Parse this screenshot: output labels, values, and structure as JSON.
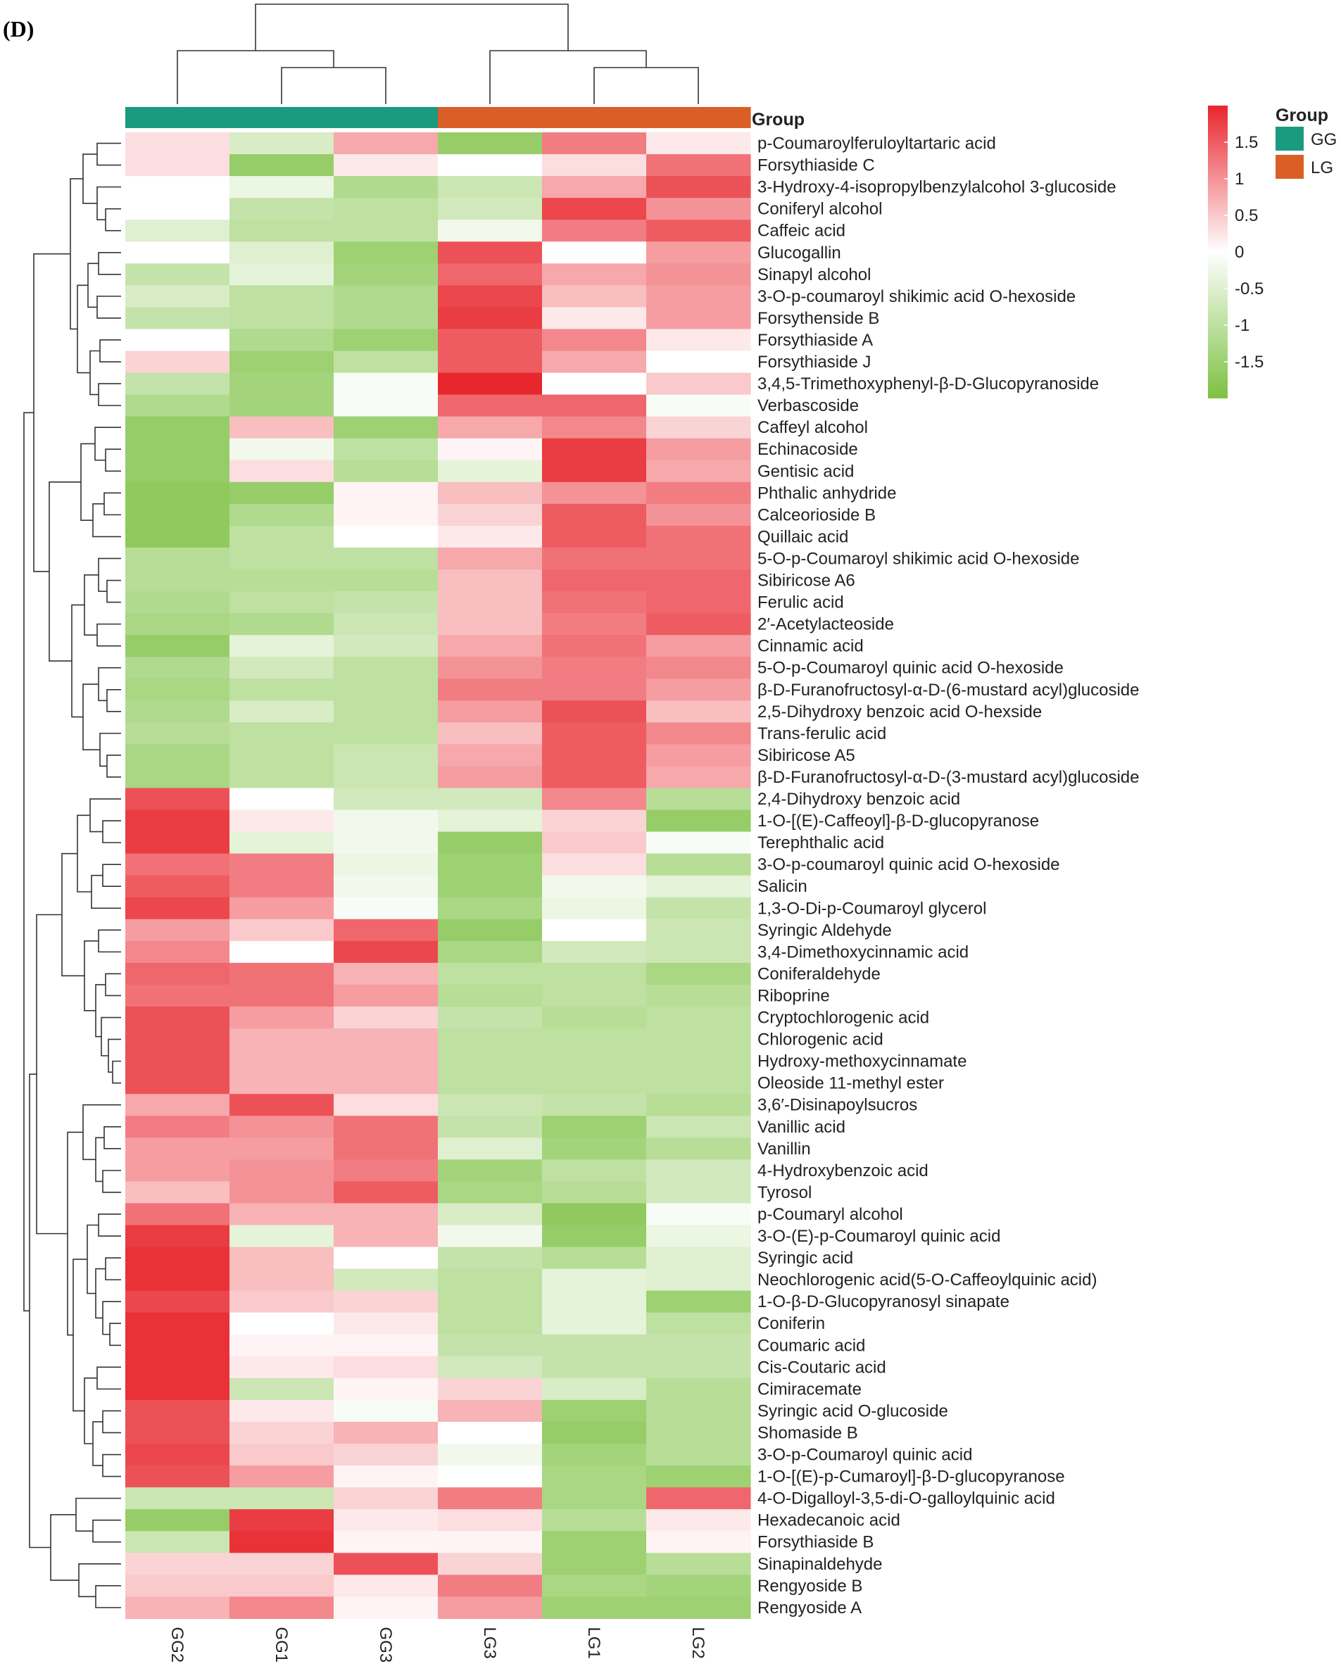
{
  "chart_data": {
    "type": "heatmap",
    "panel_label": "(D)",
    "columns": [
      "GG2",
      "GG1",
      "GG3",
      "LG3",
      "LG1",
      "LG2"
    ],
    "column_groups": [
      "GG",
      "GG",
      "GG",
      "LG",
      "LG",
      "LG"
    ],
    "group_annotation_title": "Group",
    "legend_title": "Group",
    "groups": [
      {
        "name": "GG",
        "color": "#1a9a7e"
      },
      {
        "name": "LG",
        "color": "#d95f27"
      }
    ],
    "color_scale": {
      "min": -2,
      "max": 2,
      "low_color": "#7cc142",
      "mid_color": "#ffffff",
      "high_color": "#e8262e",
      "ticks": [
        1.5,
        1,
        0.5,
        0,
        -0.5,
        -1,
        -1.5
      ],
      "tick_labels": [
        "1.5",
        "1",
        "0.5",
        "0",
        "-0.5",
        "-1",
        "-1.5"
      ]
    },
    "rows": [
      {
        "name": "p-Coumaroylferuloyltartaric acid",
        "values": [
          0.3,
          -0.6,
          0.8,
          -1.6,
          1.2,
          0.2
        ]
      },
      {
        "name": "Forsythiaside C",
        "values": [
          0.3,
          -1.6,
          0.2,
          0.0,
          0.3,
          1.3
        ]
      },
      {
        "name": "3-Hydroxy-4-isopropylbenzylalcohol 3-glucoside",
        "values": [
          0.0,
          -0.3,
          -1.2,
          -0.8,
          0.8,
          1.6
        ]
      },
      {
        "name": "Coniferyl alcohol",
        "values": [
          0.0,
          -0.9,
          -1.0,
          -0.7,
          1.7,
          1.0
        ]
      },
      {
        "name": "Caffeic acid",
        "values": [
          -0.5,
          -1.0,
          -1.0,
          -0.2,
          1.2,
          1.5
        ]
      },
      {
        "name": "Glucogallin",
        "values": [
          0.0,
          -0.5,
          -1.5,
          1.6,
          0.0,
          0.9
        ]
      },
      {
        "name": "Sinapyl alcohol",
        "values": [
          -0.9,
          -0.4,
          -1.4,
          1.4,
          0.8,
          1.0
        ]
      },
      {
        "name": "3-O-p-coumaroyl shikimic acid O-hexoside",
        "values": [
          -0.6,
          -1.0,
          -1.2,
          1.7,
          0.6,
          0.9
        ]
      },
      {
        "name": "Forsythenside B",
        "values": [
          -0.9,
          -1.0,
          -1.2,
          1.8,
          0.2,
          0.9
        ]
      },
      {
        "name": "Forsythiaside A",
        "values": [
          0.0,
          -1.2,
          -1.5,
          1.5,
          1.1,
          0.2
        ]
      },
      {
        "name": "Forsythiaside J",
        "values": [
          0.4,
          -1.5,
          -1.0,
          1.5,
          0.8,
          0.0
        ]
      },
      {
        "name": "3,4,5-Trimethoxyphenyl-β-D-Glucopyranoside",
        "values": [
          -0.9,
          -1.4,
          -0.1,
          2.0,
          0.0,
          0.5
        ]
      },
      {
        "name": "Verbascoside",
        "values": [
          -1.2,
          -1.4,
          -0.1,
          1.4,
          1.4,
          -0.1
        ]
      },
      {
        "name": "Caffeyl alcohol",
        "values": [
          -1.6,
          0.6,
          -1.5,
          0.8,
          1.1,
          0.4
        ]
      },
      {
        "name": "Echinacoside",
        "values": [
          -1.6,
          -0.2,
          -1.0,
          0.1,
          1.8,
          0.9
        ]
      },
      {
        "name": "Gentisic acid",
        "values": [
          -1.6,
          0.3,
          -1.1,
          -0.4,
          1.8,
          0.8
        ]
      },
      {
        "name": "Phthalic anhydride",
        "values": [
          -1.7,
          -1.6,
          0.1,
          0.6,
          1.0,
          1.2
        ]
      },
      {
        "name": "Calceorioside B",
        "values": [
          -1.7,
          -1.2,
          0.1,
          0.4,
          1.5,
          1.0
        ]
      },
      {
        "name": "Quillaic acid",
        "values": [
          -1.7,
          -1.0,
          0.0,
          0.2,
          1.5,
          1.3
        ]
      },
      {
        "name": "5-O-p-Coumaroyl shikimic acid O-hexoside",
        "values": [
          -1.1,
          -1.0,
          -1.0,
          0.8,
          1.3,
          1.3
        ]
      },
      {
        "name": "Sibiricose A6",
        "values": [
          -1.1,
          -1.1,
          -1.1,
          0.6,
          1.4,
          1.4
        ]
      },
      {
        "name": "Ferulic acid",
        "values": [
          -1.2,
          -1.0,
          -0.9,
          0.6,
          1.3,
          1.4
        ]
      },
      {
        "name": "2′-Acetylacteoside",
        "values": [
          -1.3,
          -1.2,
          -0.8,
          0.6,
          1.2,
          1.5
        ]
      },
      {
        "name": "Cinnamic acid",
        "values": [
          -1.6,
          -0.4,
          -0.7,
          0.8,
          1.3,
          0.9
        ]
      },
      {
        "name": "5-O-p-Coumaroyl quinic acid O-hexoside",
        "values": [
          -1.2,
          -0.7,
          -1.0,
          1.0,
          1.2,
          1.1
        ]
      },
      {
        "name": "β-D-Furanofructosyl-α-D-(6-mustard acyl)glucoside",
        "values": [
          -1.3,
          -1.0,
          -1.0,
          1.2,
          1.2,
          0.9
        ]
      },
      {
        "name": "2,5-Dihydroxy benzoic acid O-hexside",
        "values": [
          -1.2,
          -0.6,
          -1.0,
          0.9,
          1.6,
          0.6
        ]
      },
      {
        "name": "Trans-ferulic acid",
        "values": [
          -1.1,
          -1.0,
          -1.0,
          0.6,
          1.5,
          1.1
        ]
      },
      {
        "name": "Sibiricose A5",
        "values": [
          -1.3,
          -1.0,
          -0.8,
          0.8,
          1.5,
          0.9
        ]
      },
      {
        "name": "β-D-Furanofructosyl-α-D-(3-mustard acyl)glucoside",
        "values": [
          -1.3,
          -1.0,
          -0.8,
          0.9,
          1.5,
          0.8
        ]
      },
      {
        "name": "2,4-Dihydroxy benzoic acid",
        "values": [
          1.6,
          0.0,
          -0.7,
          -0.7,
          1.1,
          -1.1
        ]
      },
      {
        "name": "1-O-[(E)-Caffeoyl]-β-D-glucopyranose",
        "values": [
          1.8,
          0.2,
          -0.2,
          -0.4,
          0.4,
          -1.6
        ]
      },
      {
        "name": "Terephthalic acid",
        "values": [
          1.8,
          -0.4,
          -0.2,
          -1.6,
          0.5,
          -0.1
        ]
      },
      {
        "name": "3-O-p-coumaroyl quinic acid O-hexoside",
        "values": [
          1.3,
          1.2,
          -0.3,
          -1.5,
          0.3,
          -1.1
        ]
      },
      {
        "name": "Salicin",
        "values": [
          1.5,
          1.2,
          -0.2,
          -1.5,
          -0.2,
          -0.4
        ]
      },
      {
        "name": "1,3-O-Di-p-Coumaroyl glycerol",
        "values": [
          1.7,
          0.9,
          -0.1,
          -1.3,
          -0.3,
          -0.9
        ]
      },
      {
        "name": "Syringic Aldehyde",
        "values": [
          0.9,
          0.5,
          1.4,
          -1.6,
          0.0,
          -0.8
        ]
      },
      {
        "name": "3,4-Dimethoxycinnamic acid",
        "values": [
          1.1,
          0.0,
          1.7,
          -1.3,
          -0.7,
          -0.8
        ]
      },
      {
        "name": "Coniferaldehyde",
        "values": [
          1.4,
          1.3,
          0.7,
          -1.0,
          -1.0,
          -1.3
        ]
      },
      {
        "name": "Riboprine",
        "values": [
          1.3,
          1.3,
          0.9,
          -1.1,
          -1.0,
          -1.1
        ]
      },
      {
        "name": "Cryptochlorogenic acid",
        "values": [
          1.6,
          0.9,
          0.4,
          -0.9,
          -1.1,
          -1.0
        ]
      },
      {
        "name": "Chlorogenic acid",
        "values": [
          1.6,
          0.7,
          0.7,
          -1.0,
          -1.0,
          -1.0
        ]
      },
      {
        "name": "Hydroxy-methoxycinnamate",
        "values": [
          1.6,
          0.7,
          0.7,
          -1.0,
          -1.0,
          -1.0
        ]
      },
      {
        "name": "Oleoside 11-methyl ester",
        "values": [
          1.6,
          0.7,
          0.7,
          -1.0,
          -1.0,
          -1.0
        ]
      },
      {
        "name": "3,6′-Disinapoylsucros",
        "values": [
          0.8,
          1.6,
          0.3,
          -0.8,
          -0.9,
          -1.1
        ]
      },
      {
        "name": "Vanillic acid",
        "values": [
          1.2,
          1.0,
          1.3,
          -0.9,
          -1.5,
          -0.8
        ]
      },
      {
        "name": "Vanillin",
        "values": [
          0.9,
          0.9,
          1.3,
          -0.5,
          -1.4,
          -1.1
        ]
      },
      {
        "name": "4-Hydroxybenzoic acid",
        "values": [
          0.9,
          1.0,
          1.2,
          -1.4,
          -1.0,
          -0.7
        ]
      },
      {
        "name": "Tyrosol",
        "values": [
          0.6,
          1.0,
          1.5,
          -1.3,
          -1.1,
          -0.7
        ]
      },
      {
        "name": "p-Coumaryl alcohol",
        "values": [
          1.3,
          0.7,
          0.7,
          -0.6,
          -1.7,
          -0.1
        ]
      },
      {
        "name": "3-O-(E)-p-Coumaroyl quinic acid",
        "values": [
          1.8,
          -0.4,
          0.7,
          -0.2,
          -1.6,
          -0.3
        ]
      },
      {
        "name": "Syringic acid",
        "values": [
          1.9,
          0.6,
          0.0,
          -0.9,
          -1.1,
          -0.5
        ]
      },
      {
        "name": "Neochlorogenic acid(5-O-Caffeoylquinic acid)",
        "values": [
          1.9,
          0.6,
          -0.7,
          -1.0,
          -0.4,
          -0.5
        ]
      },
      {
        "name": "1-O-β-D-Glucopyranosyl sinapate",
        "values": [
          1.7,
          0.5,
          0.4,
          -1.0,
          -0.4,
          -1.5
        ]
      },
      {
        "name": "Coniferin",
        "values": [
          1.9,
          0.0,
          0.2,
          -1.0,
          -0.4,
          -1.0
        ]
      },
      {
        "name": "Coumaric acid",
        "values": [
          1.9,
          0.1,
          0.1,
          -0.9,
          -0.9,
          -0.9
        ]
      },
      {
        "name": "Cis-Coutaric acid",
        "values": [
          1.9,
          0.2,
          0.3,
          -0.7,
          -0.9,
          -0.9
        ]
      },
      {
        "name": "Cimiracemate",
        "values": [
          1.9,
          -0.8,
          0.1,
          0.4,
          -0.6,
          -1.1
        ]
      },
      {
        "name": "Syringic acid O-glucoside",
        "values": [
          1.6,
          0.2,
          -0.1,
          0.7,
          -1.5,
          -1.1
        ]
      },
      {
        "name": "Shomaside B",
        "values": [
          1.6,
          0.4,
          0.7,
          0.0,
          -1.6,
          -1.1
        ]
      },
      {
        "name": "3-O-p-Coumaroyl quinic acid",
        "values": [
          1.7,
          0.5,
          0.4,
          -0.2,
          -1.4,
          -1.1
        ]
      },
      {
        "name": "1-O-[(E)-p-Cumaroyl]-β-D-glucopyranose",
        "values": [
          1.6,
          0.9,
          0.1,
          0.0,
          -1.3,
          -1.5
        ]
      },
      {
        "name": "4-O-Digalloyl-3,5-di-O-galloylquinic acid",
        "values": [
          -0.8,
          -0.8,
          0.4,
          1.2,
          -1.3,
          1.4
        ]
      },
      {
        "name": "Hexadecanoic acid",
        "values": [
          -1.6,
          1.8,
          0.2,
          0.3,
          -1.1,
          0.2
        ]
      },
      {
        "name": "Forsythiaside B",
        "values": [
          -0.8,
          1.9,
          0.1,
          0.1,
          -1.5,
          0.1
        ]
      },
      {
        "name": "Sinapinaldehyde",
        "values": [
          0.4,
          0.4,
          1.6,
          0.4,
          -1.5,
          -1.1
        ]
      },
      {
        "name": "Rengyoside B",
        "values": [
          0.5,
          0.5,
          0.2,
          1.2,
          -1.3,
          -1.4
        ]
      },
      {
        "name": "Rengyoside A",
        "values": [
          0.7,
          1.1,
          0.1,
          0.9,
          -1.5,
          -1.5
        ]
      }
    ]
  }
}
